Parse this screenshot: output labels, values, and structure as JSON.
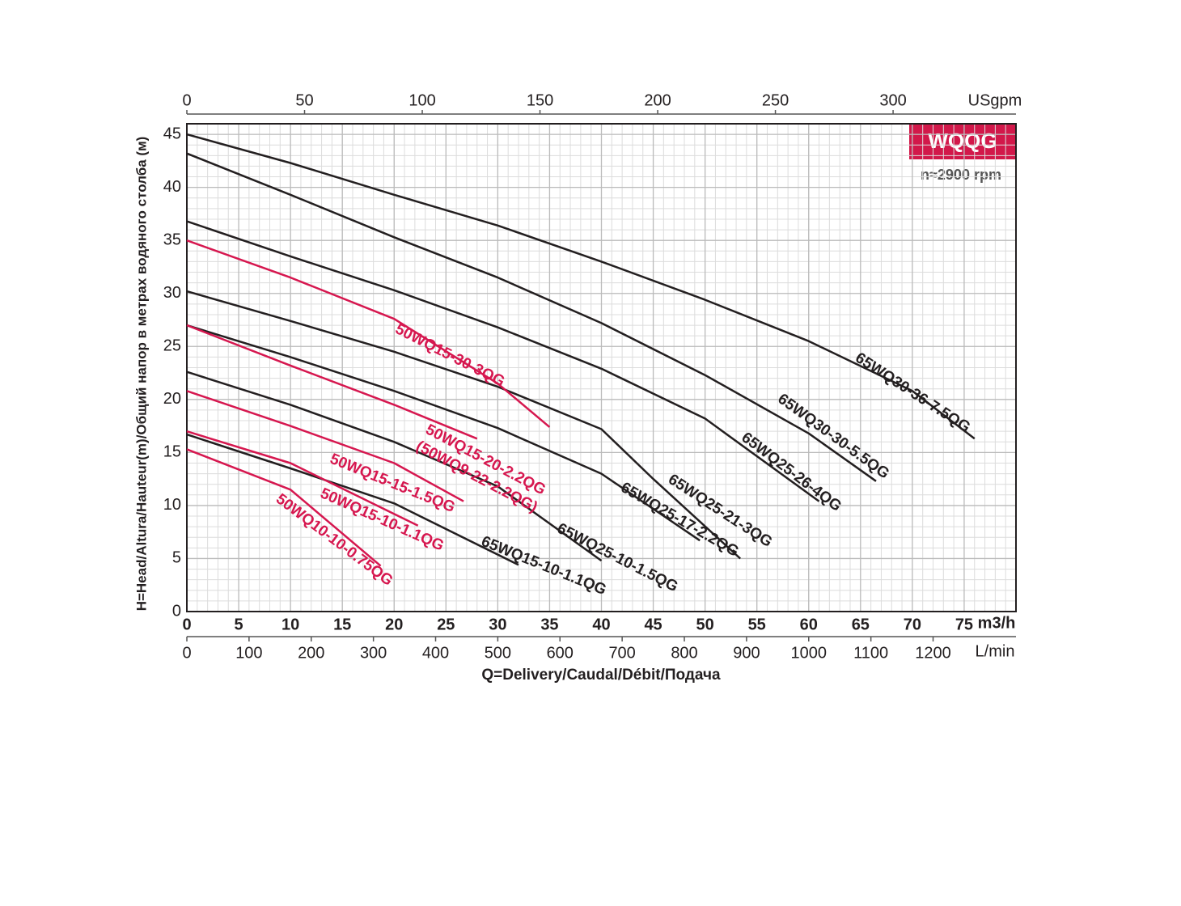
{
  "chart_data": {
    "type": "line",
    "badge": "WQQG",
    "subtitle": "n≈2900 rpm",
    "ylabel": "H=Head/Altura/Hauteur(m)/Общий напор в метрах водяного столба (м)",
    "xlabel": "Q=Delivery/Caudal/Débit/Подача",
    "xunit": "m3/h",
    "x2unit": "USgpm",
    "x3unit": "L/min",
    "xlim": [
      0,
      80
    ],
    "xticks": [
      0,
      5,
      10,
      15,
      20,
      25,
      30,
      35,
      40,
      45,
      50,
      55,
      60,
      65,
      70,
      75
    ],
    "x2lim": [
      0,
      352.2
    ],
    "x2ticks": [
      0,
      50,
      100,
      150,
      200,
      250,
      300
    ],
    "x3lim": [
      0,
      1333.3
    ],
    "x3ticks": [
      0,
      100,
      200,
      300,
      400,
      500,
      600,
      700,
      800,
      900,
      1000,
      1100,
      1200
    ],
    "ylim": [
      0,
      46
    ],
    "yticks": [
      0,
      5,
      10,
      15,
      20,
      25,
      30,
      35,
      40,
      45
    ],
    "grid": true,
    "series": [
      {
        "name": "65WQ30-36-7.5QG",
        "color": "#231f20",
        "x": [
          0,
          10,
          20,
          30,
          40,
          50,
          60,
          70,
          76
        ],
        "values": [
          45,
          42.3,
          39.3,
          36.4,
          33,
          29.4,
          25.5,
          20.8,
          16.3
        ]
      },
      {
        "name": "65WQ30-30-5.5QG",
        "color": "#231f20",
        "x": [
          0,
          10,
          20,
          30,
          40,
          50,
          60,
          66.5
        ],
        "values": [
          43.2,
          39.3,
          35.3,
          31.5,
          27.2,
          22.3,
          16.8,
          12.3
        ]
      },
      {
        "name": "65WQ25-26-4QG",
        "color": "#231f20",
        "x": [
          0,
          10,
          20,
          30,
          40,
          50,
          61
        ],
        "values": [
          36.8,
          33.5,
          30.3,
          26.8,
          22.9,
          18.2,
          10.4
        ]
      },
      {
        "name": "65WQ25-21-3QG",
        "color": "#231f20",
        "x": [
          0,
          10,
          20,
          30,
          40,
          45,
          53.4
        ],
        "values": [
          30.2,
          27.4,
          24.5,
          21.2,
          17.2,
          12.5,
          5
        ]
      },
      {
        "name": "65WQ25-17-2.2QG",
        "color": "#231f20",
        "x": [
          0,
          10,
          20,
          30,
          40,
          49.5
        ],
        "values": [
          27,
          24,
          20.8,
          17.3,
          13,
          6.7
        ]
      },
      {
        "name": "65WQ25-10-1.5QG",
        "color": "#231f20",
        "x": [
          0,
          10,
          20,
          30,
          40
        ],
        "values": [
          22.6,
          19.5,
          16,
          11.8,
          4.8
        ]
      },
      {
        "name": "65WQ15-10-1.1QG",
        "color": "#231f20",
        "x": [
          0,
          10,
          20,
          32
        ],
        "values": [
          16.7,
          13.5,
          10.2,
          4.4
        ]
      },
      {
        "name": "50WQ15-30-3QG",
        "color": "#d6174f",
        "x": [
          0,
          10,
          20,
          30,
          35
        ],
        "values": [
          35,
          31.5,
          27.6,
          21.5,
          17.4
        ]
      },
      {
        "name": "50WQ15-20-2.2QG",
        "color": "#d6174f",
        "x": [
          0,
          10,
          20,
          28
        ],
        "values": [
          27,
          23.2,
          19.5,
          16.3
        ]
      },
      {
        "name": "50WQ15-15-1.5QG",
        "color": "#d6174f",
        "x": [
          0,
          10,
          20,
          26.7
        ],
        "values": [
          20.8,
          17.5,
          14,
          10.4
        ]
      },
      {
        "name": "50WQ15-10-1.1QG",
        "color": "#d6174f",
        "x": [
          0,
          10,
          22.3
        ],
        "values": [
          17,
          14,
          8.1
        ]
      },
      {
        "name": "50WQ10-10-0.75QG",
        "color": "#d6174f",
        "x": [
          0,
          10,
          18.7
        ],
        "values": [
          15.3,
          11.5,
          4.3
        ]
      }
    ],
    "annotation": "(50WQ9-22-2.2QG)"
  }
}
